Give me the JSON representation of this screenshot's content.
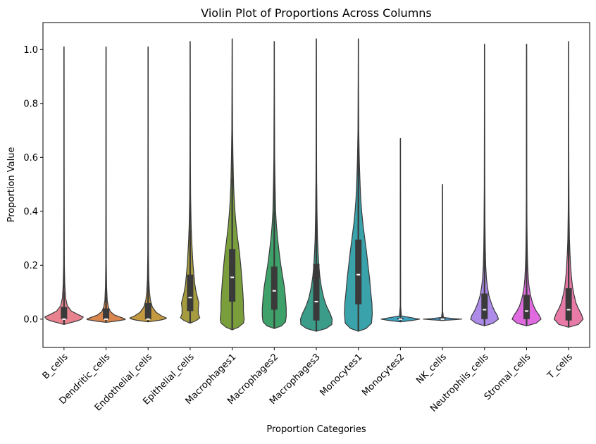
{
  "chart_data": {
    "type": "violin",
    "title": "Violin Plot of Proportions Across Columns",
    "xlabel": "Proportion Categories",
    "ylabel": "Proportion Value",
    "ylim": [
      -0.105,
      1.1
    ],
    "yticks": [
      0.0,
      0.2,
      0.4,
      0.6,
      0.8,
      1.0
    ],
    "ytick_labels": [
      "0.0",
      "0.2",
      "0.4",
      "0.6",
      "0.8",
      "1.0"
    ],
    "grid": false,
    "legend": "none",
    "categories": [
      "B_cells",
      "Dendritic_cells",
      "Endothelial_cells",
      "Epithelial_cells",
      "Macrophages1",
      "Macrophages2",
      "Macrophages3",
      "Monocytes1",
      "Monocytes2",
      "NK_cells",
      "Neutrophils_cells",
      "Stromal_cells",
      "T_cells"
    ],
    "colors": [
      "#e8828f",
      "#d9874f",
      "#c39a3f",
      "#a59b3f",
      "#7a9e3c",
      "#3ea16a",
      "#3a9c89",
      "#3aa2aa",
      "#3ea3c0",
      "#4a9fd6",
      "#ad8be8",
      "#e06ae0",
      "#e87aa8"
    ],
    "violins": [
      {
        "min": -0.02,
        "max": 1.01,
        "q1": 0.0,
        "median": 0.0,
        "q3": 0.045,
        "whisker_hi": 0.1,
        "profile": [
          [
            -0.02,
            0.0
          ],
          [
            -0.012,
            0.4
          ],
          [
            -0.005,
            0.75
          ],
          [
            0.0,
            0.9
          ],
          [
            0.008,
            1.0
          ],
          [
            0.018,
            0.7
          ],
          [
            0.03,
            0.38
          ],
          [
            0.05,
            0.17
          ],
          [
            0.08,
            0.08
          ],
          [
            0.13,
            0.04
          ],
          [
            0.2,
            0.02
          ],
          [
            0.35,
            0.012
          ],
          [
            0.6,
            0.006
          ],
          [
            0.85,
            0.004
          ],
          [
            1.01,
            0.0
          ]
        ]
      },
      {
        "min": -0.012,
        "max": 1.01,
        "q1": 0.0,
        "median": 0.0,
        "q3": 0.04,
        "whisker_hi": 0.08,
        "profile": [
          [
            -0.012,
            0.0
          ],
          [
            -0.007,
            0.55
          ],
          [
            -0.002,
            0.95
          ],
          [
            0.0,
            1.0
          ],
          [
            0.006,
            0.8
          ],
          [
            0.015,
            0.45
          ],
          [
            0.028,
            0.22
          ],
          [
            0.045,
            0.12
          ],
          [
            0.07,
            0.06
          ],
          [
            0.12,
            0.03
          ],
          [
            0.2,
            0.015
          ],
          [
            0.4,
            0.008
          ],
          [
            0.7,
            0.005
          ],
          [
            1.01,
            0.0
          ]
        ]
      },
      {
        "min": -0.01,
        "max": 1.01,
        "q1": 0.0,
        "median": 0.0,
        "q3": 0.06,
        "whisker_hi": 0.12,
        "profile": [
          [
            -0.01,
            0.0
          ],
          [
            -0.004,
            0.6
          ],
          [
            0.0,
            0.85
          ],
          [
            0.004,
            0.95
          ],
          [
            0.012,
            0.7
          ],
          [
            0.025,
            0.42
          ],
          [
            0.045,
            0.22
          ],
          [
            0.07,
            0.12
          ],
          [
            0.1,
            0.07
          ],
          [
            0.15,
            0.035
          ],
          [
            0.25,
            0.015
          ],
          [
            0.5,
            0.008
          ],
          [
            0.8,
            0.005
          ],
          [
            1.01,
            0.0
          ]
        ]
      },
      {
        "min": -0.015,
        "max": 1.03,
        "q1": 0.03,
        "median": 0.08,
        "q3": 0.165,
        "whisker_hi": 0.33,
        "profile": [
          [
            -0.015,
            0.0
          ],
          [
            -0.005,
            0.32
          ],
          [
            0.005,
            0.5
          ],
          [
            0.02,
            0.42
          ],
          [
            0.04,
            0.42
          ],
          [
            0.06,
            0.45
          ],
          [
            0.08,
            0.38
          ],
          [
            0.1,
            0.31
          ],
          [
            0.13,
            0.24
          ],
          [
            0.16,
            0.2
          ],
          [
            0.2,
            0.15
          ],
          [
            0.25,
            0.11
          ],
          [
            0.3,
            0.075
          ],
          [
            0.35,
            0.05
          ],
          [
            0.45,
            0.025
          ],
          [
            0.6,
            0.012
          ],
          [
            0.8,
            0.006
          ],
          [
            1.03,
            0.0
          ]
        ]
      },
      {
        "min": -0.04,
        "max": 1.04,
        "q1": 0.065,
        "median": 0.155,
        "q3": 0.26,
        "whisker_hi": 0.52,
        "profile": [
          [
            -0.04,
            0.0
          ],
          [
            -0.03,
            0.32
          ],
          [
            -0.015,
            0.58
          ],
          [
            0.0,
            0.62
          ],
          [
            0.03,
            0.58
          ],
          [
            0.06,
            0.58
          ],
          [
            0.1,
            0.55
          ],
          [
            0.15,
            0.5
          ],
          [
            0.2,
            0.44
          ],
          [
            0.25,
            0.37
          ],
          [
            0.3,
            0.28
          ],
          [
            0.35,
            0.2
          ],
          [
            0.4,
            0.14
          ],
          [
            0.45,
            0.1
          ],
          [
            0.5,
            0.07
          ],
          [
            0.6,
            0.04
          ],
          [
            0.7,
            0.02
          ],
          [
            0.85,
            0.01
          ],
          [
            1.04,
            0.0
          ]
        ]
      },
      {
        "min": -0.035,
        "max": 1.03,
        "q1": 0.035,
        "median": 0.105,
        "q3": 0.195,
        "whisker_hi": 0.4,
        "profile": [
          [
            -0.035,
            0.0
          ],
          [
            -0.025,
            0.38
          ],
          [
            -0.01,
            0.58
          ],
          [
            0.01,
            0.62
          ],
          [
            0.04,
            0.62
          ],
          [
            0.08,
            0.58
          ],
          [
            0.12,
            0.52
          ],
          [
            0.16,
            0.43
          ],
          [
            0.2,
            0.34
          ],
          [
            0.25,
            0.25
          ],
          [
            0.3,
            0.17
          ],
          [
            0.35,
            0.11
          ],
          [
            0.4,
            0.07
          ],
          [
            0.5,
            0.04
          ],
          [
            0.6,
            0.02
          ],
          [
            0.8,
            0.01
          ],
          [
            1.03,
            0.0
          ]
        ]
      },
      {
        "min": -0.045,
        "max": 1.04,
        "q1": -0.005,
        "median": 0.065,
        "q3": 0.205,
        "whisker_hi": 0.5,
        "profile": [
          [
            -0.045,
            0.0
          ],
          [
            -0.035,
            0.5
          ],
          [
            -0.02,
            0.8
          ],
          [
            0.0,
            0.82
          ],
          [
            0.02,
            0.72
          ],
          [
            0.05,
            0.52
          ],
          [
            0.08,
            0.38
          ],
          [
            0.12,
            0.26
          ],
          [
            0.16,
            0.18
          ],
          [
            0.2,
            0.13
          ],
          [
            0.25,
            0.09
          ],
          [
            0.3,
            0.06
          ],
          [
            0.4,
            0.035
          ],
          [
            0.5,
            0.02
          ],
          [
            0.7,
            0.01
          ],
          [
            0.9,
            0.006
          ],
          [
            1.04,
            0.0
          ]
        ]
      },
      {
        "min": -0.045,
        "max": 1.04,
        "q1": 0.055,
        "median": 0.165,
        "q3": 0.295,
        "whisker_hi": 0.62,
        "profile": [
          [
            -0.045,
            0.0
          ],
          [
            -0.035,
            0.4
          ],
          [
            -0.015,
            0.68
          ],
          [
            0.02,
            0.72
          ],
          [
            0.06,
            0.7
          ],
          [
            0.1,
            0.64
          ],
          [
            0.15,
            0.58
          ],
          [
            0.2,
            0.5
          ],
          [
            0.25,
            0.42
          ],
          [
            0.3,
            0.33
          ],
          [
            0.35,
            0.24
          ],
          [
            0.4,
            0.17
          ],
          [
            0.45,
            0.12
          ],
          [
            0.5,
            0.09
          ],
          [
            0.55,
            0.065
          ],
          [
            0.6,
            0.045
          ],
          [
            0.7,
            0.02
          ],
          [
            0.85,
            0.01
          ],
          [
            1.04,
            0.0
          ]
        ]
      },
      {
        "min": -0.01,
        "max": 0.67,
        "q1": 0.0,
        "median": 0.0,
        "q3": 0.002,
        "whisker_hi": 0.01,
        "profile": [
          [
            -0.01,
            0.0
          ],
          [
            -0.005,
            0.6
          ],
          [
            0.0,
            1.0
          ],
          [
            0.005,
            0.6
          ],
          [
            0.012,
            0.05
          ],
          [
            0.05,
            0.01
          ],
          [
            0.67,
            0.0
          ]
        ]
      },
      {
        "min": -0.005,
        "max": 0.5,
        "q1": 0.0,
        "median": 0.0,
        "q3": 0.001,
        "whisker_hi": 0.003,
        "profile": [
          [
            -0.005,
            0.0
          ],
          [
            -0.002,
            0.6
          ],
          [
            0.0,
            1.0
          ],
          [
            0.002,
            0.6
          ],
          [
            0.006,
            0.05
          ],
          [
            0.03,
            0.01
          ],
          [
            0.5,
            0.0
          ]
        ]
      },
      {
        "min": -0.025,
        "max": 1.02,
        "q1": 0.0,
        "median": 0.035,
        "q3": 0.095,
        "whisker_hi": 0.22,
        "profile": [
          [
            -0.025,
            0.0
          ],
          [
            -0.015,
            0.45
          ],
          [
            0.0,
            0.72
          ],
          [
            0.015,
            0.65
          ],
          [
            0.03,
            0.52
          ],
          [
            0.05,
            0.4
          ],
          [
            0.07,
            0.3
          ],
          [
            0.09,
            0.22
          ],
          [
            0.12,
            0.15
          ],
          [
            0.15,
            0.1
          ],
          [
            0.2,
            0.06
          ],
          [
            0.26,
            0.04
          ],
          [
            0.35,
            0.025
          ],
          [
            0.5,
            0.012
          ],
          [
            0.8,
            0.006
          ],
          [
            1.02,
            0.0
          ]
        ]
      },
      {
        "min": -0.025,
        "max": 1.02,
        "q1": 0.0,
        "median": 0.03,
        "q3": 0.09,
        "whisker_hi": 0.22,
        "profile": [
          [
            -0.025,
            0.0
          ],
          [
            -0.015,
            0.5
          ],
          [
            0.0,
            0.75
          ],
          [
            0.015,
            0.65
          ],
          [
            0.03,
            0.5
          ],
          [
            0.05,
            0.36
          ],
          [
            0.07,
            0.27
          ],
          [
            0.09,
            0.2
          ],
          [
            0.12,
            0.13
          ],
          [
            0.15,
            0.09
          ],
          [
            0.2,
            0.055
          ],
          [
            0.26,
            0.035
          ],
          [
            0.35,
            0.02
          ],
          [
            0.5,
            0.01
          ],
          [
            0.8,
            0.006
          ],
          [
            1.02,
            0.0
          ]
        ]
      },
      {
        "min": -0.03,
        "max": 1.03,
        "q1": -0.005,
        "median": 0.035,
        "q3": 0.115,
        "whisker_hi": 0.3,
        "profile": [
          [
            -0.03,
            0.0
          ],
          [
            -0.02,
            0.5
          ],
          [
            0.0,
            0.75
          ],
          [
            0.02,
            0.65
          ],
          [
            0.04,
            0.5
          ],
          [
            0.06,
            0.38
          ],
          [
            0.09,
            0.28
          ],
          [
            0.12,
            0.2
          ],
          [
            0.16,
            0.14
          ],
          [
            0.2,
            0.1
          ],
          [
            0.25,
            0.065
          ],
          [
            0.3,
            0.04
          ],
          [
            0.4,
            0.022
          ],
          [
            0.55,
            0.012
          ],
          [
            0.8,
            0.006
          ],
          [
            1.03,
            0.0
          ]
        ]
      }
    ]
  }
}
